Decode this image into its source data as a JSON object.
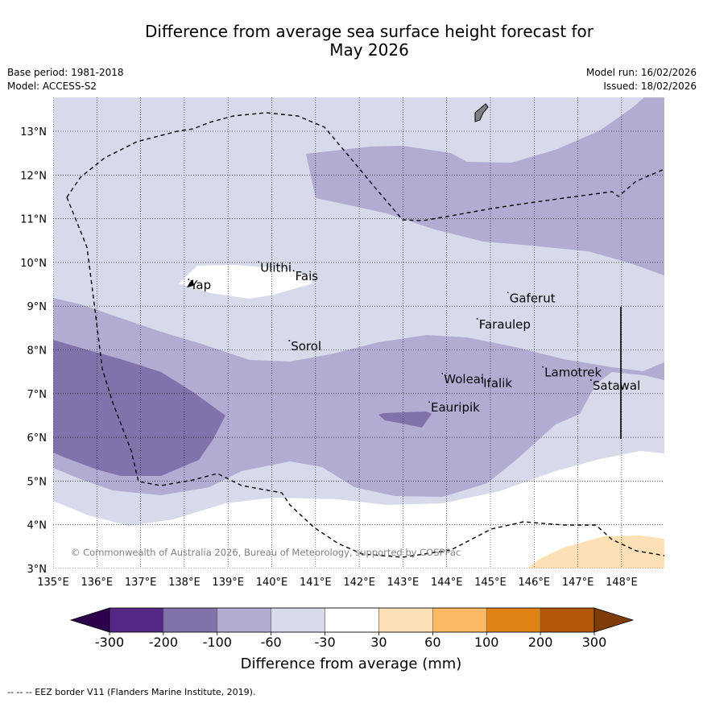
{
  "title_line1": "Difference from average sea surface height forecast for",
  "title_line2": "May 2026",
  "meta_left": {
    "base_period": "Base period: 1981-2018",
    "model": "Model: ACCESS-S2"
  },
  "meta_right": {
    "model_run": "Model run: 16/02/2026",
    "issued": "Issued: 18/02/2026"
  },
  "map": {
    "lon_range": [
      135,
      149
    ],
    "lat_range": [
      3,
      13.8
    ],
    "lon_ticks": [
      "135°E",
      "136°E",
      "137°E",
      "138°E",
      "139°E",
      "140°E",
      "141°E",
      "142°E",
      "143°E",
      "144°E",
      "145°E",
      "146°E",
      "147°E",
      "148°E"
    ],
    "lat_ticks": [
      "3°N",
      "4°N",
      "5°N",
      "6°N",
      "7°N",
      "8°N",
      "9°N",
      "10°N",
      "11°N",
      "12°N",
      "13°N"
    ],
    "places": [
      {
        "name": "Ulithi",
        "lon": 139.7,
        "lat": 9.9
      },
      {
        "name": "Fais",
        "lon": 140.5,
        "lat": 9.7
      },
      {
        "name": "Yap",
        "lon": 138.1,
        "lat": 9.5
      },
      {
        "name": "Gaferut",
        "lon": 145.4,
        "lat": 9.2
      },
      {
        "name": "Faraulep",
        "lon": 144.7,
        "lat": 8.6
      },
      {
        "name": "Sorol",
        "lon": 140.4,
        "lat": 8.1
      },
      {
        "name": "Woleai",
        "lon": 143.9,
        "lat": 7.35
      },
      {
        "name": "Ifalik",
        "lon": 144.8,
        "lat": 7.25
      },
      {
        "name": "Lamotrek",
        "lon": 146.2,
        "lat": 7.5
      },
      {
        "name": "Satawal",
        "lon": 147.3,
        "lat": 7.2
      },
      {
        "name": "Eauripik",
        "lon": 143.6,
        "lat": 6.7
      }
    ],
    "copyright": "© Commonwealth of Australia 2026, Bureau of Meteorology, supported by COSPPac"
  },
  "colorbar": {
    "label": "Difference from average (mm)",
    "ticks": [
      "-300",
      "-200",
      "-100",
      "-60",
      "-30",
      "30",
      "60",
      "100",
      "200",
      "300"
    ],
    "under_color": "#2d004b",
    "over_color": "#7f3b08",
    "colors": [
      "#542788",
      "#8073ac",
      "#b2abd2",
      "#d8daeb",
      "#ffffff",
      "#fee0b6",
      "#fdb863",
      "#e08214",
      "#b35806"
    ]
  },
  "footer": "--  --  -- EEZ border V11 (Flanders Marine Institute, 2019)."
}
